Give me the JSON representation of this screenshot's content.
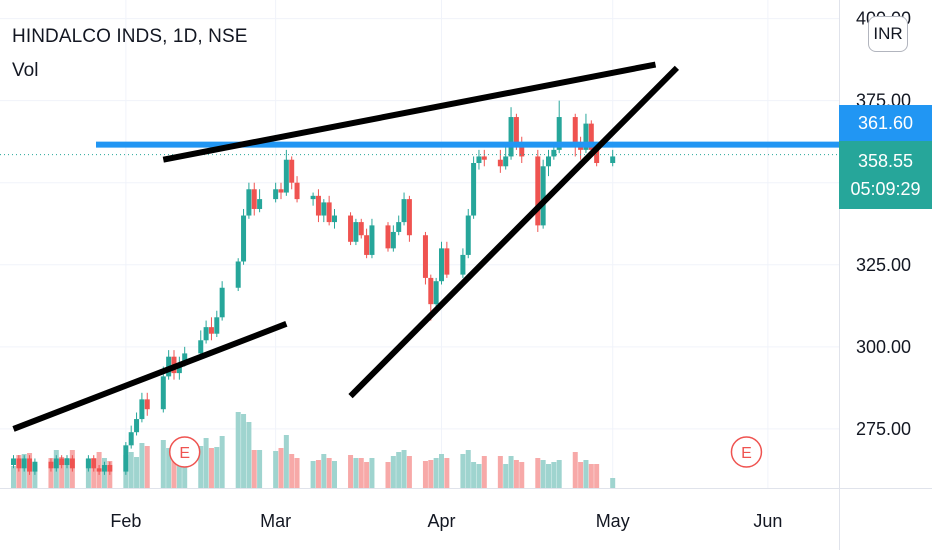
{
  "header": {
    "symbol_title": "HINDALCO INDS, 1D, NSE",
    "volume_label": "Vol",
    "currency_button": "INR"
  },
  "price_scale": {
    "tick_labels": [
      "400.00",
      "375.00",
      "325.00",
      "300.00",
      "275.00"
    ],
    "top_tick_partial": "40",
    "hline_label": "361.60",
    "last_price_label": "358.55",
    "countdown_label": "05:09:29"
  },
  "time_scale": {
    "labels": [
      "Feb",
      "Mar",
      "Apr",
      "May",
      "Jun"
    ]
  },
  "earnings_markers": [
    "E",
    "E"
  ],
  "colors": {
    "up": "#26a69a",
    "down": "#ef5350",
    "up_volume": "#9fd4cf",
    "down_volume": "#f7a9a8",
    "hline": "#2196f3",
    "trendline": "#000000",
    "grid": "#f0f3fa",
    "earnings": "#ef5350"
  },
  "chart_data": {
    "type": "candlestick",
    "title": "HINDALCO INDS, 1D, NSE",
    "y_range": [
      257,
      402
    ],
    "y_ticks": [
      275,
      300,
      325,
      350,
      375,
      400
    ],
    "x_ticks": [
      {
        "label": "Feb",
        "date": "2021-02-01"
      },
      {
        "label": "Mar",
        "date": "2021-03-01"
      },
      {
        "label": "Apr",
        "date": "2021-04-01"
      },
      {
        "label": "May",
        "date": "2021-05-03"
      },
      {
        "label": "Jun",
        "date": "2021-06-01"
      }
    ],
    "last_price": 358.55,
    "horizontal_line": 361.6,
    "candles": [
      [
        262,
        272,
        260,
        273,
        "u",
        33
      ],
      [
        272,
        265,
        263,
        274,
        "d",
        43
      ],
      [
        265,
        269,
        264,
        270,
        "u",
        32
      ],
      [
        269,
        264,
        262,
        270,
        "d",
        24
      ],
      [
        264,
        268,
        263,
        269,
        "u",
        25
      ],
      [
        268,
        264,
        262,
        269,
        "d",
        30
      ],
      [
        264,
        266,
        263,
        267,
        "u",
        22
      ],
      [
        266,
        263,
        262,
        267,
        "d",
        33
      ],
      [
        263,
        266,
        262,
        267,
        "u",
        34
      ],
      [
        266,
        262,
        261,
        267,
        "d",
        35
      ],
      [
        262,
        265,
        261,
        266,
        "u",
        24
      ],
      [
        265,
        263,
        262,
        266,
        "d",
        30
      ],
      [
        263,
        266,
        262,
        267,
        "u",
        38
      ],
      [
        266,
        264,
        263,
        267,
        "d",
        31
      ],
      [
        264,
        266,
        263,
        267,
        "u",
        30
      ],
      [
        266,
        263,
        262,
        267,
        "d",
        38
      ],
      [
        263,
        266,
        262,
        267,
        "u",
        29
      ],
      [
        266,
        263,
        262,
        267,
        "d",
        30
      ],
      [
        263,
        262,
        261,
        264,
        "d",
        36
      ],
      [
        262,
        264,
        261,
        265,
        "u",
        30
      ],
      [
        264,
        262,
        261,
        265,
        "d",
        27
      ],
      [
        262,
        270,
        261,
        271,
        "u",
        33
      ],
      [
        270,
        274,
        269,
        276,
        "u",
        36
      ],
      [
        274,
        278,
        273,
        280,
        "u",
        31
      ],
      [
        278,
        284,
        277,
        286,
        "u",
        45
      ],
      [
        284,
        281,
        279,
        286,
        "d",
        42
      ],
      [
        281,
        291,
        280,
        294,
        "u",
        48
      ],
      [
        291,
        297,
        290,
        299,
        "u",
        40
      ],
      [
        297,
        292,
        290,
        299,
        "d",
        40
      ],
      [
        292,
        295,
        290,
        297,
        "u",
        39
      ],
      [
        295,
        298,
        294,
        300,
        "u",
        48
      ],
      [
        298,
        302,
        297,
        305,
        "u",
        42
      ],
      [
        302,
        306,
        301,
        308,
        "u",
        50
      ],
      [
        306,
        304,
        302,
        309,
        "d",
        40
      ],
      [
        304,
        309,
        303,
        311,
        "u",
        41
      ],
      [
        309,
        318,
        308,
        320,
        "u",
        52
      ],
      [
        318,
        326,
        317,
        327,
        "u",
        76
      ],
      [
        326,
        340,
        325,
        342,
        "u",
        74
      ],
      [
        340,
        348,
        339,
        350,
        "u",
        66
      ],
      [
        348,
        342,
        340,
        350,
        "d",
        38
      ],
      [
        342,
        345,
        341,
        348,
        "u",
        38
      ],
      [
        345,
        348,
        344,
        350,
        "u",
        37
      ],
      [
        348,
        347,
        345,
        350,
        "d",
        40
      ],
      [
        347,
        357,
        346,
        360,
        "u",
        53
      ],
      [
        357,
        350,
        348,
        358,
        "d",
        34
      ],
      [
        350,
        345,
        344,
        352,
        "d",
        30
      ],
      [
        345,
        346,
        343,
        347,
        "u",
        27
      ],
      [
        346,
        340,
        338,
        348,
        "d",
        28
      ],
      [
        340,
        344,
        338,
        345,
        "u",
        34
      ],
      [
        344,
        338,
        337,
        346,
        "d",
        30
      ],
      [
        338,
        340,
        336,
        342,
        "u",
        27
      ],
      [
        340,
        332,
        331,
        341,
        "d",
        33
      ],
      [
        332,
        338,
        331,
        339,
        "u",
        30
      ],
      [
        338,
        334,
        333,
        339,
        "d",
        30
      ],
      [
        334,
        328,
        327,
        336,
        "d",
        26
      ],
      [
        328,
        337,
        327,
        339,
        "u",
        30
      ],
      [
        337,
        330,
        329,
        338,
        "d",
        26
      ],
      [
        330,
        335,
        329,
        337,
        "u",
        32
      ],
      [
        335,
        338,
        334,
        340,
        "u",
        36
      ],
      [
        338,
        345,
        337,
        347,
        "u",
        38
      ],
      [
        345,
        334,
        332,
        346,
        "d",
        32
      ],
      [
        334,
        321,
        319,
        335,
        "d",
        27
      ],
      [
        321,
        313,
        308,
        322,
        "d",
        28
      ],
      [
        313,
        320,
        312,
        321,
        "u",
        30
      ],
      [
        320,
        330,
        319,
        332,
        "u",
        34
      ],
      [
        330,
        322,
        321,
        332,
        "d",
        30
      ],
      [
        322,
        328,
        321,
        330,
        "u",
        34
      ],
      [
        328,
        340,
        327,
        342,
        "u",
        38
      ],
      [
        340,
        356,
        339,
        358,
        "u",
        26
      ],
      [
        356,
        358,
        354,
        360,
        "u",
        24
      ],
      [
        358,
        357,
        355,
        360,
        "d",
        32
      ],
      [
        357,
        355,
        353,
        360,
        "d",
        32
      ],
      [
        355,
        358,
        354,
        362,
        "u",
        24
      ],
      [
        358,
        370,
        357,
        373,
        "u",
        32
      ],
      [
        370,
        362,
        360,
        371,
        "d",
        28
      ],
      [
        362,
        358,
        356,
        364,
        "d",
        26
      ],
      [
        358,
        337,
        335,
        360,
        "d",
        30
      ],
      [
        337,
        355,
        336,
        357,
        "u",
        28
      ],
      [
        355,
        358,
        352,
        360,
        "u",
        24
      ],
      [
        358,
        360,
        357,
        362,
        "u",
        26
      ],
      [
        360,
        370,
        359,
        375,
        "u",
        28
      ],
      [
        370,
        362,
        358,
        371,
        "d",
        36
      ],
      [
        362,
        360,
        357,
        364,
        "d",
        26
      ],
      [
        360,
        368,
        359,
        371,
        "u",
        28
      ],
      [
        368,
        360,
        358,
        369,
        "d",
        24
      ],
      [
        360,
        356,
        355,
        362,
        "d",
        24
      ],
      [
        356,
        358,
        355,
        360,
        "u",
        10
      ]
    ],
    "volume_scale_max": 100,
    "trendlines": [
      {
        "from": {
          "date": "2021-01-11",
          "price": 275
        },
        "to": {
          "date": "2021-03-03",
          "price": 307
        }
      },
      {
        "from": {
          "date": "2021-02-08",
          "price": 357
        },
        "to": {
          "date": "2021-05-11",
          "price": 386
        }
      },
      {
        "from": {
          "date": "2021-03-15",
          "price": 285
        },
        "to": {
          "date": "2021-05-15",
          "price": 385
        }
      }
    ]
  }
}
